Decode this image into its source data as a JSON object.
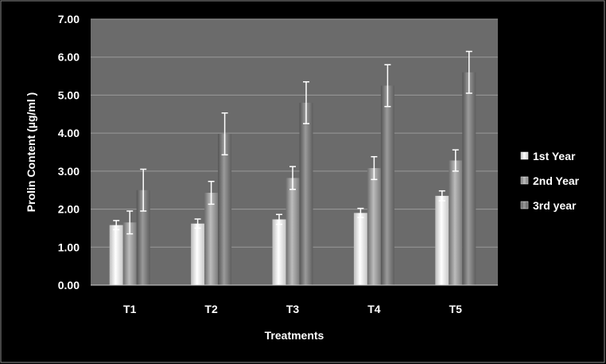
{
  "chart_data": {
    "type": "bar",
    "title": "",
    "xlabel": "Treatments",
    "ylabel": "Prolin Content (µg/ml )",
    "ylim": [
      0,
      7
    ],
    "y_ticks": [
      "0.00",
      "1.00",
      "2.00",
      "3.00",
      "4.00",
      "5.00",
      "6.00",
      "7.00"
    ],
    "categories": [
      "T1",
      "T2",
      "T3",
      "T4",
      "T5"
    ],
    "grid": true,
    "legend_position": "right",
    "series": [
      {
        "name": "1st Year",
        "values": [
          1.58,
          1.62,
          1.73,
          1.9,
          2.35
        ],
        "errors": [
          0.12,
          0.12,
          0.13,
          0.12,
          0.13
        ],
        "color": "#e6e6e6"
      },
      {
        "name": "2nd Year",
        "values": [
          1.65,
          2.43,
          2.82,
          3.08,
          3.28
        ],
        "errors": [
          0.3,
          0.3,
          0.3,
          0.3,
          0.28
        ],
        "color": "#9a9a9a"
      },
      {
        "name": "3rd year",
        "values": [
          2.5,
          3.98,
          4.8,
          5.25,
          5.6
        ],
        "errors": [
          0.55,
          0.55,
          0.55,
          0.55,
          0.55
        ],
        "color": "#7a7a7a"
      }
    ]
  }
}
